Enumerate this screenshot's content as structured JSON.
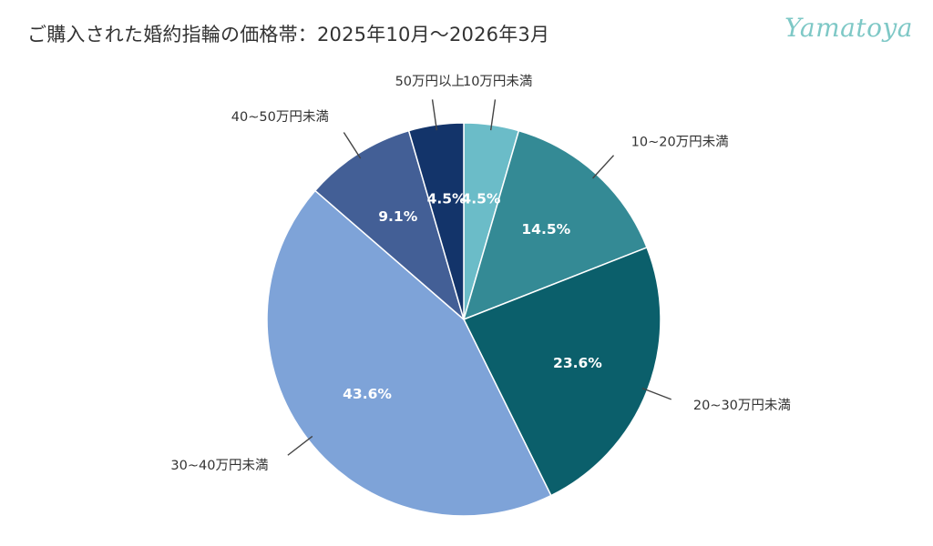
{
  "header": {
    "title": "ご購入された婚約指輪の価格帯：2025年10月～2026年3月",
    "logo_text": "Yamatoya"
  },
  "colors": {
    "logo": "#7ec8c6",
    "slice_border": "#ffffff"
  },
  "chart_data": {
    "type": "pie",
    "title": "ご購入された婚約指輪の価格帯：2025年10月～2026年3月",
    "start_angle_deg": 0,
    "direction": "clockwise",
    "slices": [
      {
        "label": "10万円未満",
        "value": 4.5,
        "display": "4.5%",
        "color": "#6bbcc8"
      },
      {
        "label": "10~20万円未満",
        "value": 14.5,
        "display": "14.5%",
        "color": "#348a95"
      },
      {
        "label": "20~30万円未満",
        "value": 23.6,
        "display": "23.6%",
        "color": "#0b5f6b"
      },
      {
        "label": "30~40万円未満",
        "value": 43.6,
        "display": "43.6%",
        "color": "#7ea3d8"
      },
      {
        "label": "40~50万円未満",
        "value": 9.1,
        "display": "9.1%",
        "color": "#435f96"
      },
      {
        "label": "50万円以上",
        "value": 4.5,
        "display": "4.5%",
        "color": "#13346a"
      }
    ]
  }
}
